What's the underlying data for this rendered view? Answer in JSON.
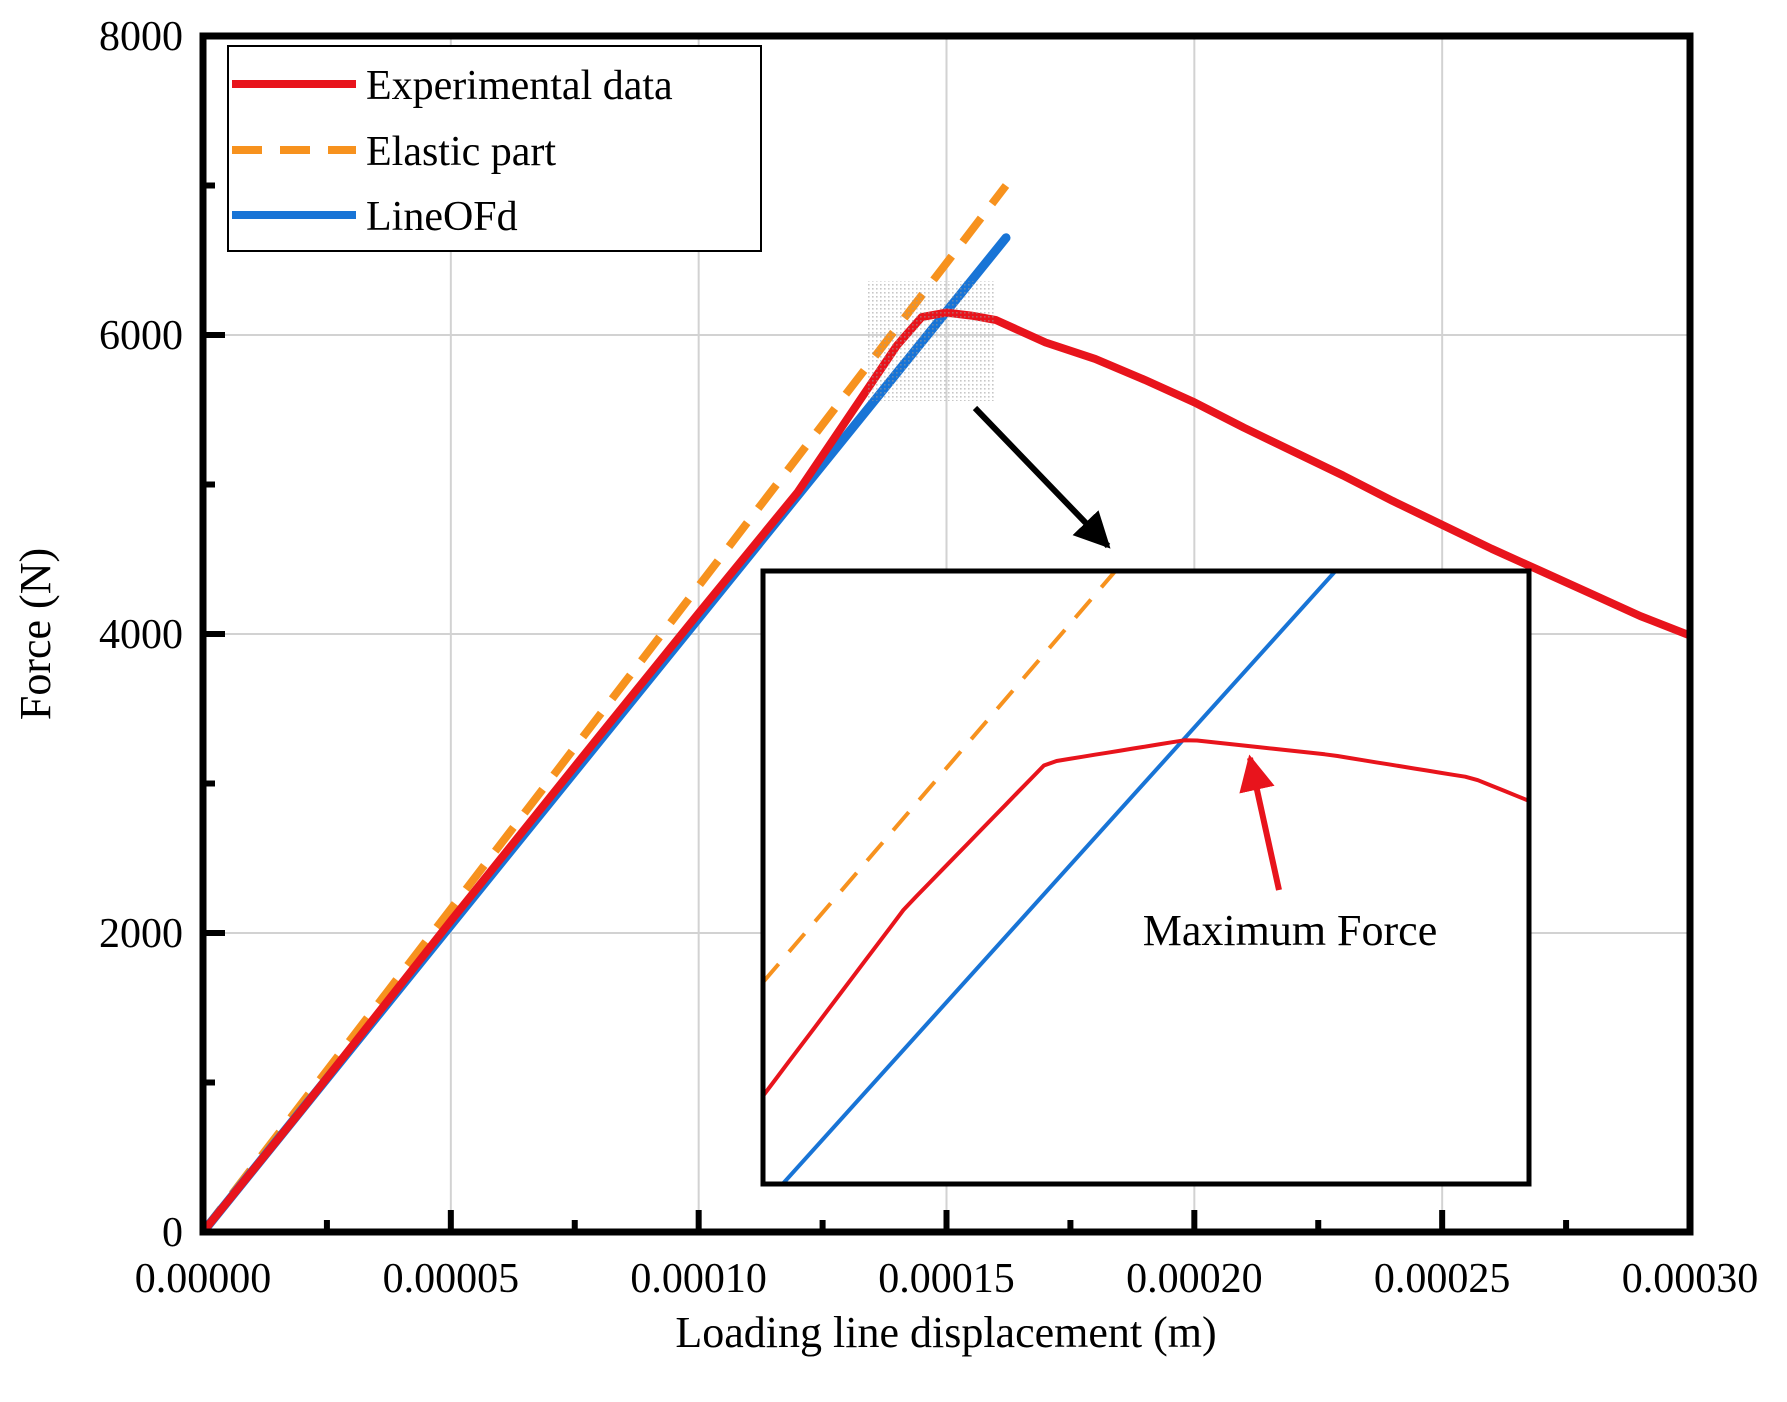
{
  "chart_data": {
    "type": "line",
    "title": "",
    "xlabel": "Loading line displacement (m)",
    "ylabel": "Force (N)",
    "xlim": [
      0,
      0.0003
    ],
    "ylim": [
      0,
      8000
    ],
    "x_ticks": [
      0,
      5e-05,
      0.0001,
      0.00015,
      0.0002,
      0.00025,
      0.0003
    ],
    "x_tick_labels": [
      "0.00000",
      "0.00005",
      "0.00010",
      "0.00015",
      "0.00020",
      "0.00025",
      "0.00030"
    ],
    "y_ticks": [
      0,
      2000,
      4000,
      6000,
      8000
    ],
    "y_tick_labels": [
      "0",
      "2000",
      "4000",
      "6000",
      "8000"
    ],
    "grid": true,
    "legend_position": "top-left",
    "series": [
      {
        "name": "Experimental data",
        "color": "#e8141c",
        "style": "solid",
        "x": [
          0,
          2e-05,
          5e-05,
          8e-05,
          0.0001,
          0.00012,
          0.00014,
          0.000145,
          0.00015,
          0.000155,
          0.00016,
          0.00017,
          0.00018,
          0.00019,
          0.0002,
          0.00021,
          0.00022,
          0.00023,
          0.00024,
          0.00025,
          0.00026,
          0.00027,
          0.00028,
          0.00029,
          0.0003
        ],
        "y": [
          0,
          820,
          2080,
          3320,
          4140,
          4950,
          5930,
          6120,
          6150,
          6130,
          6100,
          5950,
          5840,
          5700,
          5550,
          5380,
          5220,
          5060,
          4890,
          4730,
          4570,
          4420,
          4270,
          4120,
          3990
        ]
      },
      {
        "name": "Elastic part",
        "color": "#f7921e",
        "style": "dashed",
        "x": [
          0,
          0.000162
        ],
        "y": [
          0,
          7000
        ]
      },
      {
        "name": "LineOFd",
        "color": "#1874d6",
        "style": "solid",
        "x": [
          0,
          0.000162
        ],
        "y": [
          0,
          6650
        ]
      }
    ],
    "inset": {
      "xlim": [
        0.000135,
        0.000162
      ],
      "ylim": [
        5570,
        6370
      ],
      "annotation": "Maximum Force",
      "max_point": [
        0.000151,
        6150
      ]
    }
  }
}
